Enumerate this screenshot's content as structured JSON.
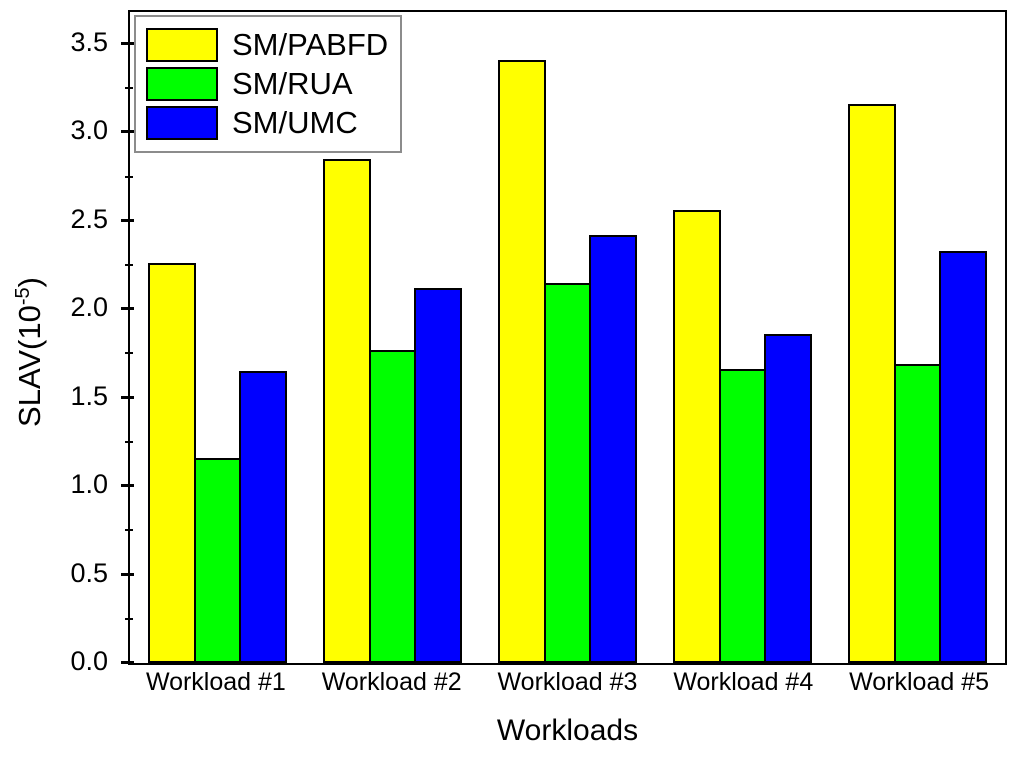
{
  "chart_data": {
    "type": "bar",
    "title": "",
    "xlabel": "Workloads",
    "ylabel": "SLAV(10^-5)",
    "ylabel_parts": {
      "base": "SLAV(10",
      "sup": "-5",
      "close": ")"
    },
    "categories": [
      "Workload #1",
      "Workload #2",
      "Workload #3",
      "Workload #4",
      "Workload #5"
    ],
    "series": [
      {
        "name": "SM/PABFD",
        "color": "#ffff00",
        "values": [
          2.26,
          2.85,
          3.41,
          2.56,
          3.16
        ]
      },
      {
        "name": "SM/RUA",
        "color": "#00ff00",
        "values": [
          1.16,
          1.77,
          2.15,
          1.66,
          1.69
        ]
      },
      {
        "name": "SM/UMC",
        "color": "#0000ff",
        "values": [
          1.65,
          2.12,
          2.42,
          1.86,
          2.33
        ]
      }
    ],
    "ylim": [
      0,
      3.68
    ],
    "yticks": [
      0.0,
      0.5,
      1.0,
      1.5,
      2.0,
      2.5,
      3.0,
      3.5
    ],
    "ytick_labels": [
      "0.0",
      "0.5",
      "1.0",
      "1.5",
      "2.0",
      "2.5",
      "3.0",
      "3.5"
    ],
    "minor_ytick_step": 0.25,
    "grid": false,
    "legend_position": "top-left",
    "bar_border_color": "#000000",
    "axis_color": "#000000"
  }
}
